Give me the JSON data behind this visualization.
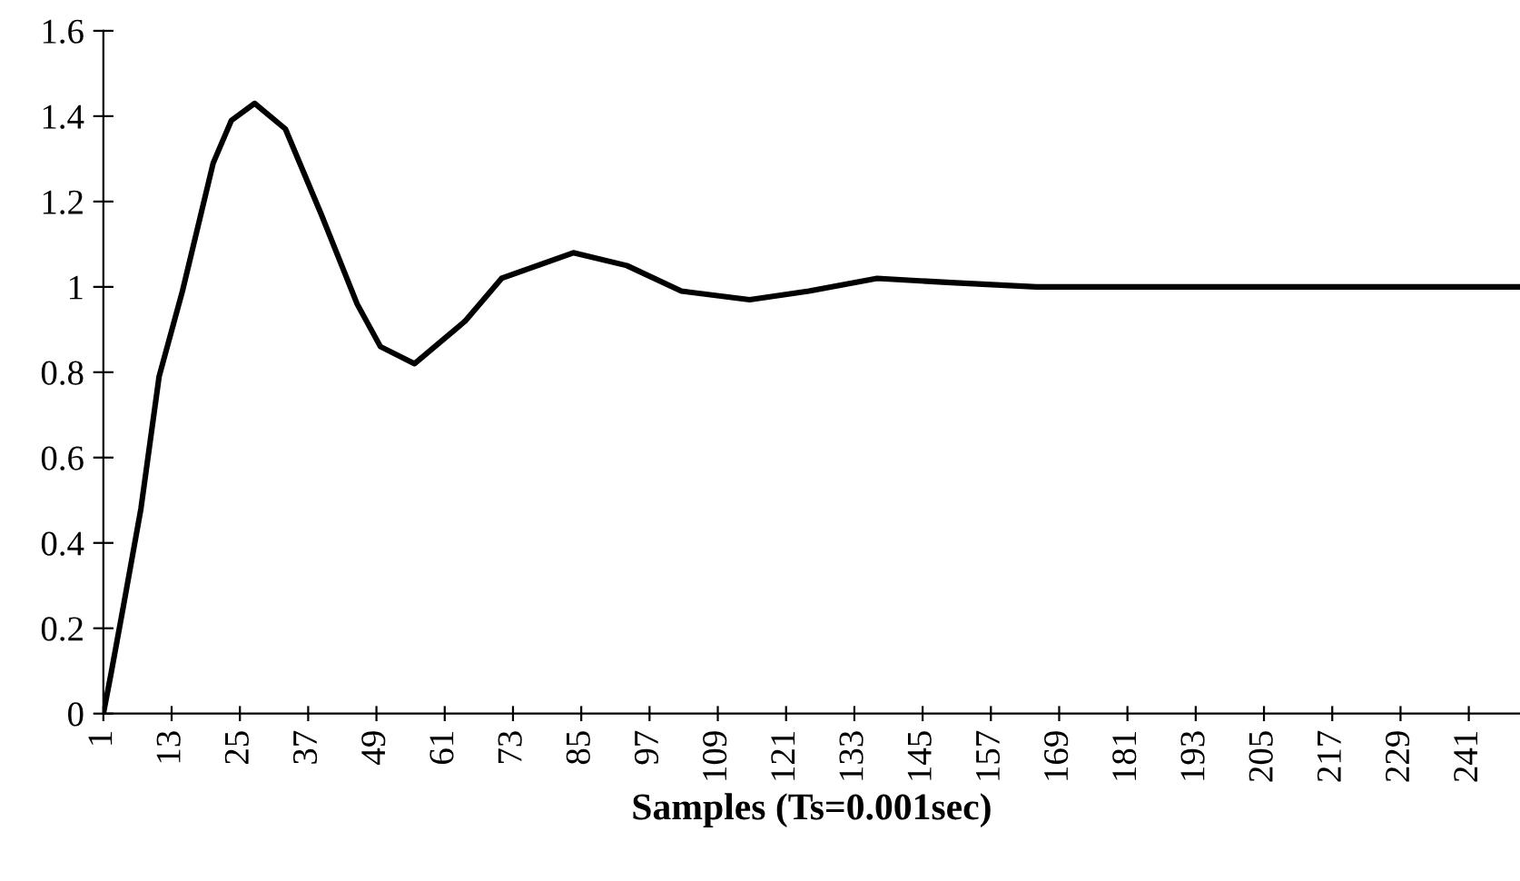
{
  "chart_data": {
    "type": "line",
    "xlabel": "Samples (Ts=0.001sec)",
    "series": [
      {
        "color": "#000000",
        "x": [
          1,
          2.3,
          4.5,
          7.6,
          10.8,
          14.9,
          20.3,
          23.5,
          27.6,
          33,
          39.3,
          45.6,
          49.7,
          55.7,
          64.6,
          71,
          83.6,
          93,
          102.6,
          114.6,
          125,
          137,
          150,
          165,
          180,
          200,
          220,
          250
        ],
        "values": [
          0,
          0.09,
          0.25,
          0.48,
          0.79,
          0.99,
          1.29,
          1.39,
          1.43,
          1.37,
          1.17,
          0.96,
          0.86,
          0.82,
          0.92,
          1.02,
          1.08,
          1.05,
          0.99,
          0.97,
          0.99,
          1.02,
          1.01,
          1.0,
          1.0,
          1.0,
          1.0,
          1.0
        ]
      }
    ],
    "xlim": [
      1,
      250
    ],
    "xticks": [
      1,
      13,
      25,
      37,
      49,
      61,
      73,
      85,
      97,
      109,
      121,
      133,
      145,
      157,
      169,
      181,
      193,
      205,
      217,
      229,
      241
    ],
    "ylim": [
      0,
      1.6
    ],
    "yticks": [
      0,
      {
        "value": 0.2,
        "label": "0.2"
      },
      {
        "value": 0.4,
        "label": "0.4"
      },
      {
        "value": 0.6,
        "label": "0.6"
      },
      {
        "value": 0.8,
        "label": "0.8"
      },
      1,
      {
        "value": 1.2,
        "label": "1.2"
      },
      {
        "value": 1.4,
        "label": "1.4"
      },
      {
        "value": 1.6,
        "label": "1.6"
      }
    ],
    "grid": false,
    "legend": false,
    "marker": "none",
    "line_style": "solid"
  }
}
